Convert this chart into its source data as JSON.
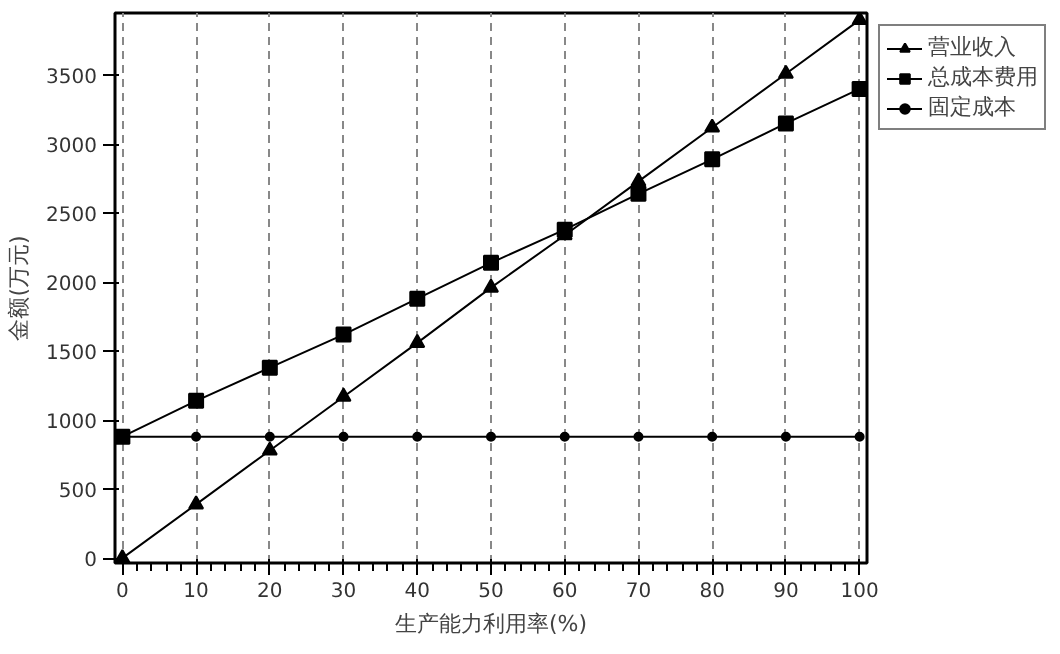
{
  "chart_data": {
    "type": "line",
    "xlabel": "生产能力利用率(%)",
    "ylabel": "金额(万元)",
    "x": [
      0,
      10,
      20,
      30,
      40,
      50,
      60,
      70,
      80,
      90,
      100
    ],
    "series": [
      {
        "name": "营业收入",
        "color": "#000000",
        "marker": "triangle",
        "values": [
          0,
          390,
          780,
          1170,
          1560,
          1960,
          2340,
          2730,
          3120,
          3510,
          3900
        ]
      },
      {
        "name": "总成本费用",
        "color": "#000000",
        "marker": "square",
        "values": [
          880,
          1140,
          1380,
          1620,
          1880,
          2140,
          2380,
          2640,
          2890,
          3150,
          3400
        ]
      },
      {
        "name": "固定成本",
        "color": "#000000",
        "marker": "circle",
        "values": [
          880,
          880,
          880,
          880,
          880,
          880,
          880,
          880,
          880,
          880,
          880
        ]
      }
    ],
    "xlim": [
      -1,
      101
    ],
    "ylim": [
      -35,
      3950
    ],
    "xticks": [
      0,
      10,
      20,
      30,
      40,
      50,
      60,
      70,
      80,
      90,
      100
    ],
    "yticks": [
      0,
      500,
      1000,
      1500,
      2000,
      2500,
      3000,
      3500
    ],
    "grid": "x",
    "legend": "top right",
    "line_style": "solid"
  }
}
